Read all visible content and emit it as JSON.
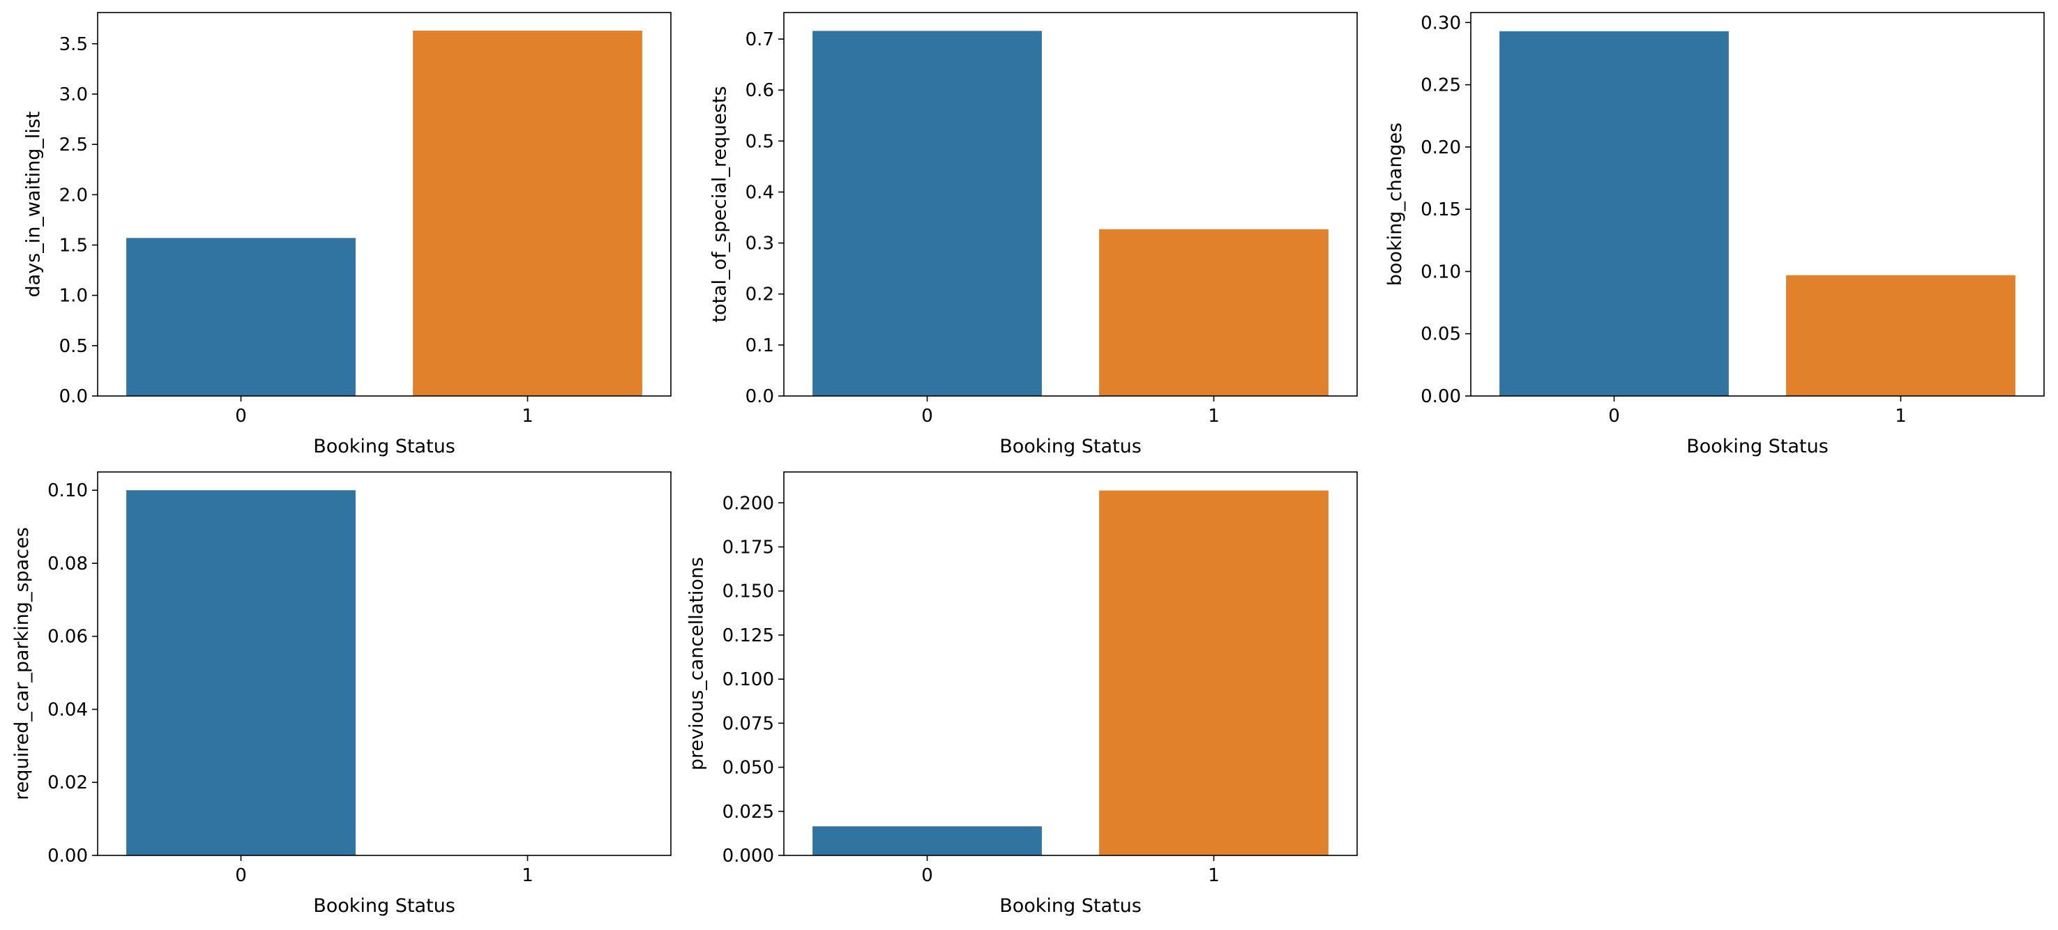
{
  "colors": {
    "class_0": "#3274a1",
    "class_1": "#e1812c",
    "axis": "#000000"
  },
  "chart_data": [
    {
      "type": "bar",
      "categories": [
        "0",
        "1"
      ],
      "values": [
        1.57,
        3.63
      ],
      "xlabel": "Booking Status",
      "ylabel": "days_in_waiting_list",
      "ylim": [
        0,
        3.81
      ],
      "yticks": [
        0.0,
        0.5,
        1.0,
        1.5,
        2.0,
        2.5,
        3.0,
        3.5
      ],
      "ytick_labels": [
        "0.0",
        "0.5",
        "1.0",
        "1.5",
        "2.0",
        "2.5",
        "3.0",
        "3.5"
      ],
      "grid": false
    },
    {
      "type": "bar",
      "categories": [
        "0",
        "1"
      ],
      "values": [
        0.716,
        0.327
      ],
      "xlabel": "Booking Status",
      "ylabel": "total_of_special_requests",
      "ylim": [
        0,
        0.752
      ],
      "yticks": [
        0.0,
        0.1,
        0.2,
        0.3,
        0.4,
        0.5,
        0.6,
        0.7
      ],
      "ytick_labels": [
        "0.0",
        "0.1",
        "0.2",
        "0.3",
        "0.4",
        "0.5",
        "0.6",
        "0.7"
      ],
      "grid": false
    },
    {
      "type": "bar",
      "categories": [
        "0",
        "1"
      ],
      "values": [
        0.293,
        0.097
      ],
      "xlabel": "Booking Status",
      "ylabel": "booking_changes",
      "ylim": [
        0,
        0.308
      ],
      "yticks": [
        0.0,
        0.05,
        0.1,
        0.15,
        0.2,
        0.25,
        0.3
      ],
      "ytick_labels": [
        "0.00",
        "0.05",
        "0.10",
        "0.15",
        "0.20",
        "0.25",
        "0.30"
      ],
      "grid": false
    },
    {
      "type": "bar",
      "categories": [
        "0",
        "1"
      ],
      "values": [
        0.1,
        0.0
      ],
      "xlabel": "Booking Status",
      "ylabel": "required_car_parking_spaces",
      "ylim": [
        0,
        0.105
      ],
      "yticks": [
        0.0,
        0.02,
        0.04,
        0.06,
        0.08,
        0.1
      ],
      "ytick_labels": [
        "0.00",
        "0.02",
        "0.04",
        "0.06",
        "0.08",
        "0.10"
      ],
      "grid": false
    },
    {
      "type": "bar",
      "categories": [
        "0",
        "1"
      ],
      "values": [
        0.0165,
        0.207
      ],
      "xlabel": "Booking Status",
      "ylabel": "previous_cancellations",
      "ylim": [
        0,
        0.2175
      ],
      "yticks": [
        0.0,
        0.025,
        0.05,
        0.075,
        0.1,
        0.125,
        0.15,
        0.175,
        0.2
      ],
      "ytick_labels": [
        "0.000",
        "0.025",
        "0.050",
        "0.075",
        "0.100",
        "0.125",
        "0.150",
        "0.175",
        "0.200"
      ],
      "grid": false
    }
  ]
}
